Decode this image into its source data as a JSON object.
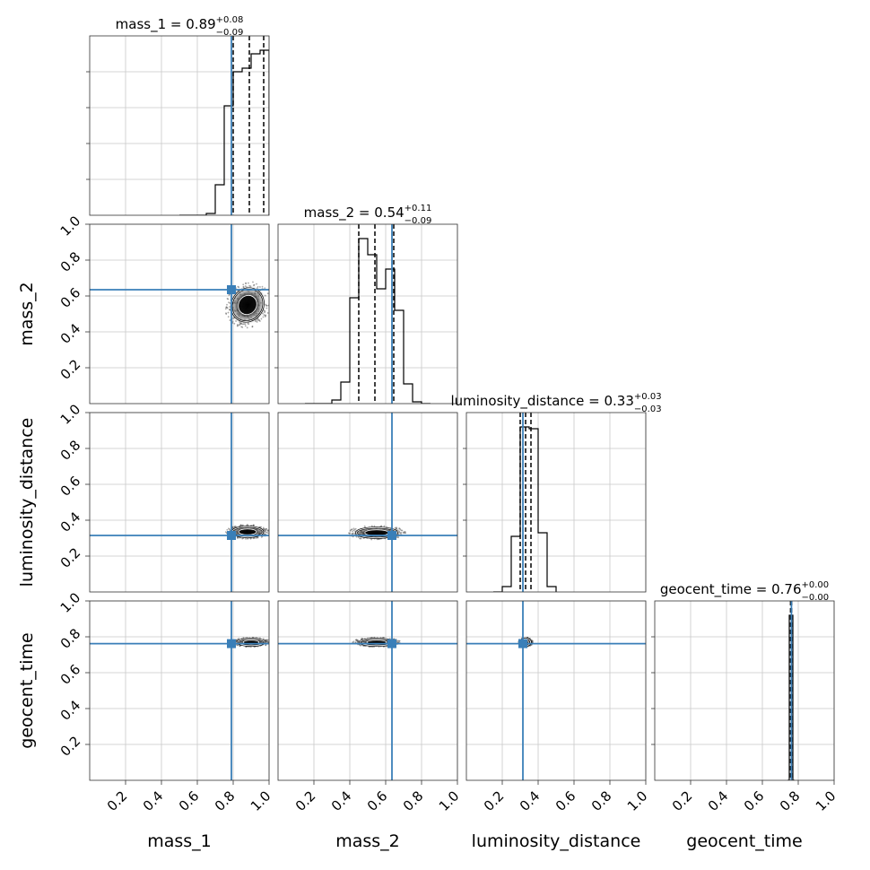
{
  "chart_data": {
    "type": "corner",
    "parameters": [
      "mass_1",
      "mass_2",
      "luminosity_distance",
      "geocent_time"
    ],
    "axis_labels": [
      "mass_1",
      "mass_2",
      "luminosity_distance",
      "geocent_time"
    ],
    "xlim": [
      0,
      1
    ],
    "ylim": [
      0,
      1
    ],
    "ticks": [
      "0.2",
      "0.4",
      "0.6",
      "0.8",
      "1.0"
    ],
    "grid": true,
    "truth_color": "#3a7fb8",
    "truths": [
      0.79,
      0.635,
      0.315,
      0.762
    ],
    "titles": [
      {
        "param": "mass_1",
        "median": "0.89",
        "plus": "+0.08",
        "minus": "−0.09"
      },
      {
        "param": "mass_2",
        "median": "0.54",
        "plus": "+0.11",
        "minus": "−0.09"
      },
      {
        "param": "luminosity_distance",
        "median": "0.33",
        "plus": "+0.03",
        "minus": "−0.03"
      },
      {
        "param": "geocent_time",
        "median": "0.76",
        "plus": "+0.00",
        "minus": "−0.00"
      }
    ],
    "quantiles": [
      [
        0.8,
        0.89,
        0.97
      ],
      [
        0.45,
        0.54,
        0.645
      ],
      [
        0.3,
        0.33,
        0.36
      ],
      [
        0.757,
        0.76,
        0.763
      ]
    ],
    "histograms": [
      {
        "edges": [
          0.5,
          0.55,
          0.6,
          0.65,
          0.7,
          0.75,
          0.8,
          0.85,
          0.9,
          0.95,
          1.0
        ],
        "counts": [
          0,
          0,
          0,
          0.01,
          0.17,
          0.61,
          0.8,
          0.82,
          0.9,
          0.92
        ]
      },
      {
        "edges": [
          0.15,
          0.2,
          0.25,
          0.3,
          0.35,
          0.4,
          0.45,
          0.5,
          0.55,
          0.6,
          0.65,
          0.7,
          0.75,
          0.8,
          0.85
        ],
        "counts": [
          0,
          0,
          0,
          0.02,
          0.12,
          0.59,
          0.92,
          0.83,
          0.64,
          0.75,
          0.52,
          0.11,
          0.01,
          0
        ]
      },
      {
        "edges": [
          0.15,
          0.2,
          0.25,
          0.3,
          0.35,
          0.4,
          0.45,
          0.5
        ],
        "counts": [
          0,
          0.03,
          0.31,
          0.92,
          0.91,
          0.33,
          0.03
        ]
      },
      {
        "edges": [
          0.74,
          0.75,
          0.76,
          0.77,
          0.78
        ],
        "counts": [
          0,
          0.92,
          0.92,
          0
        ]
      }
    ],
    "contours_2d": [
      {
        "row": 1,
        "col": 0,
        "center": [
          0.88,
          0.55
        ],
        "spread": [
          0.09,
          0.1
        ],
        "tilt": -0.9
      },
      {
        "row": 2,
        "col": 0,
        "center": [
          0.88,
          0.335
        ],
        "spread": [
          0.09,
          0.03
        ],
        "tilt": 0
      },
      {
        "row": 2,
        "col": 1,
        "center": [
          0.55,
          0.33
        ],
        "spread": [
          0.12,
          0.03
        ],
        "tilt": 0
      },
      {
        "row": 3,
        "col": 0,
        "center": [
          0.9,
          0.77
        ],
        "spread": [
          0.08,
          0.008
        ],
        "tilt": 0
      },
      {
        "row": 3,
        "col": 1,
        "center": [
          0.55,
          0.77
        ],
        "spread": [
          0.1,
          0.008
        ],
        "tilt": 0
      },
      {
        "row": 3,
        "col": 2,
        "center": [
          0.33,
          0.77
        ],
        "spread": [
          0.03,
          0.008
        ],
        "tilt": 0
      }
    ]
  }
}
